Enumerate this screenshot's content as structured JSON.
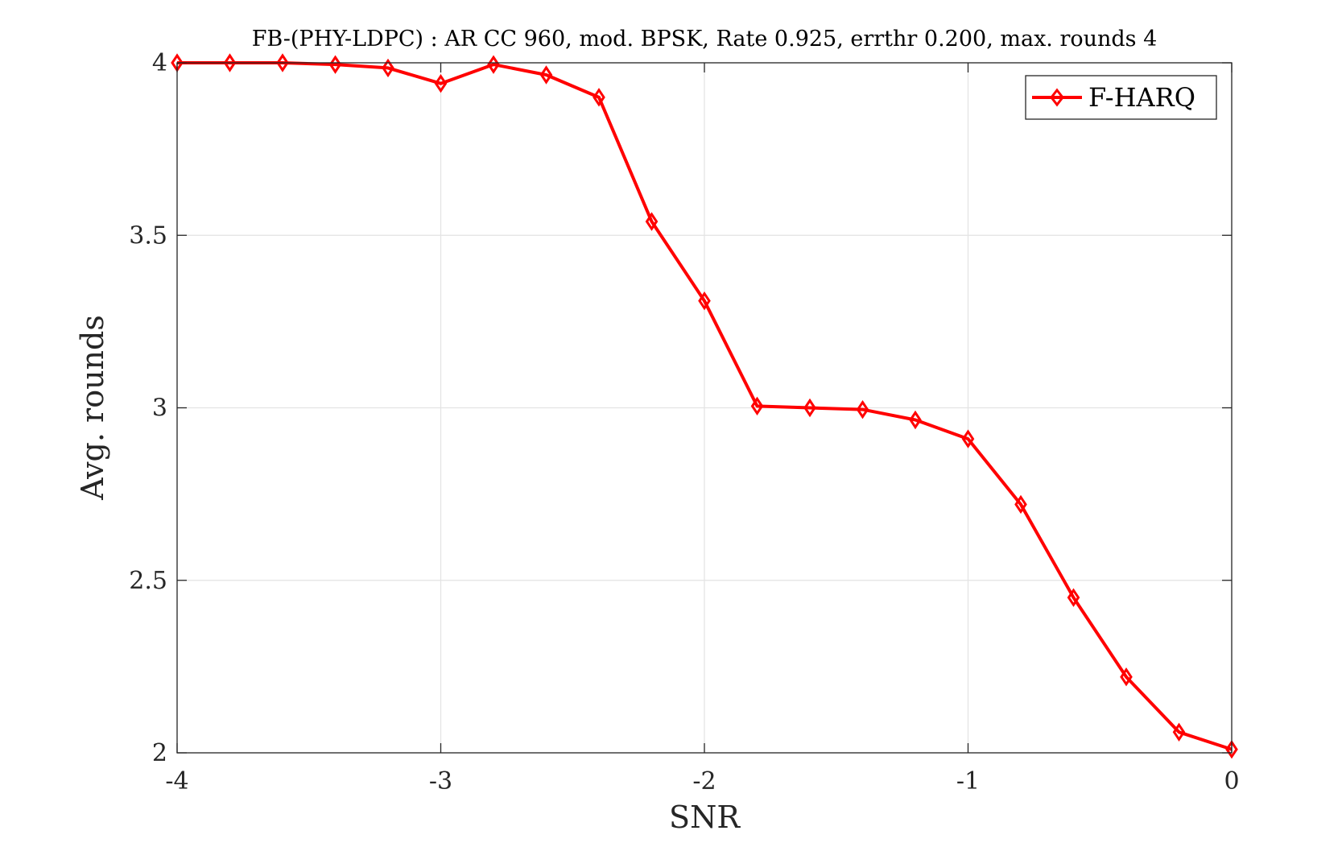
{
  "chart_data": {
    "type": "line",
    "title": "FB-(PHY-LDPC) : AR CC 960, mod. BPSK, Rate 0.925, errthr 0.200, max. rounds 4",
    "xlabel": "SNR",
    "ylabel": "Avg. rounds",
    "xlim": [
      -4,
      0
    ],
    "ylim": [
      2,
      4
    ],
    "xticks": [
      -4,
      -3,
      -2,
      -1,
      0
    ],
    "xtick_labels": [
      "-4",
      "-3",
      "-2",
      "-1",
      "0"
    ],
    "yticks": [
      2,
      2.5,
      3,
      3.5,
      4
    ],
    "ytick_labels": [
      "2",
      "2.5",
      "3",
      "3.5",
      "4"
    ],
    "grid": true,
    "legend_position": "top-right",
    "x": [
      -4,
      -3.8,
      -3.6,
      -3.4,
      -3.2,
      -3,
      -2.8,
      -2.6,
      -2.4,
      -2.2,
      -2,
      -1.8,
      -1.6,
      -1.4,
      -1.2,
      -1,
      -0.8,
      -0.6,
      -0.4,
      -0.2,
      0
    ],
    "series": [
      {
        "name": "F-HARQ",
        "color": "#ff0000",
        "marker": "diamond",
        "values": [
          4.0,
          4.0,
          4.0,
          3.995,
          3.985,
          3.94,
          3.995,
          3.965,
          3.9,
          3.54,
          3.31,
          3.005,
          3.0,
          2.995,
          2.965,
          2.91,
          2.72,
          2.45,
          2.22,
          2.06,
          2.01
        ]
      }
    ]
  }
}
